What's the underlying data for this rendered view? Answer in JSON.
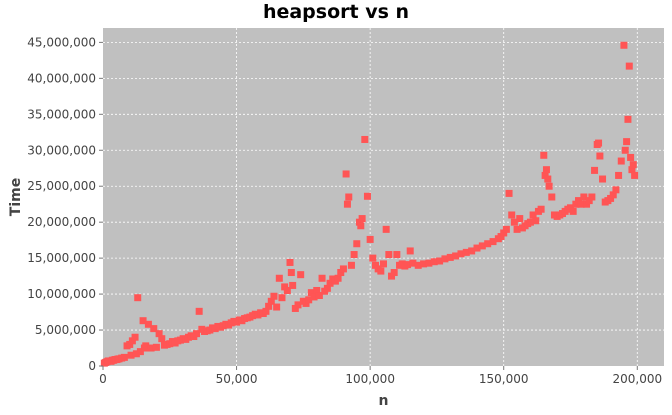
{
  "chart_data": {
    "type": "scatter",
    "title": "heapsort vs n",
    "xlabel": "n",
    "ylabel": "Time",
    "xlim": [
      0,
      210000
    ],
    "ylim": [
      0,
      47000000
    ],
    "x_ticks": [
      "0",
      "50,000",
      "100,000",
      "150,000",
      "200,000"
    ],
    "x_tick_values": [
      0,
      50000,
      100000,
      150000,
      200000
    ],
    "y_ticks": [
      "0",
      "5,000,000",
      "10,000,000",
      "15,000,000",
      "20,000,000",
      "25,000,000",
      "30,000,000",
      "35,000,000",
      "40,000,000",
      "45,000,000"
    ],
    "y_tick_values": [
      0,
      5000000,
      10000000,
      15000000,
      20000000,
      25000000,
      30000000,
      35000000,
      40000000,
      45000000
    ],
    "grid": true,
    "colors": {
      "plot_background": "#c0c0c0",
      "marker": "#ff5555",
      "gridline": "#ffffff"
    },
    "series": [
      {
        "points": [
          [
            500,
            400000
          ],
          [
            1000,
            500000
          ],
          [
            1500,
            600000
          ],
          [
            2000,
            700000
          ],
          [
            2500,
            700000
          ],
          [
            3000,
            650000
          ],
          [
            3500,
            800000
          ],
          [
            4000,
            800000
          ],
          [
            4500,
            900000
          ],
          [
            5000,
            900000
          ],
          [
            5500,
            950000
          ],
          [
            6000,
            1000000
          ],
          [
            7000,
            1100000
          ],
          [
            8000,
            1200000
          ],
          [
            9000,
            2800000
          ],
          [
            10000,
            3000000
          ],
          [
            10500,
            1500000
          ],
          [
            11000,
            3500000
          ],
          [
            12000,
            4000000
          ],
          [
            12500,
            1700000
          ],
          [
            13000,
            9500000
          ],
          [
            14000,
            2000000
          ],
          [
            15000,
            6300000
          ],
          [
            15500,
            2500000
          ],
          [
            16000,
            2800000
          ],
          [
            17000,
            5800000
          ],
          [
            18000,
            2500000
          ],
          [
            19000,
            5200000
          ],
          [
            20000,
            2600000
          ],
          [
            21000,
            4500000
          ],
          [
            22000,
            3800000
          ],
          [
            23000,
            2900000
          ],
          [
            24000,
            3000000
          ],
          [
            25000,
            3100000
          ],
          [
            26000,
            3400000
          ],
          [
            27000,
            3200000
          ],
          [
            28000,
            3500000
          ],
          [
            29000,
            3600000
          ],
          [
            30000,
            3800000
          ],
          [
            31000,
            3700000
          ],
          [
            32000,
            4000000
          ],
          [
            33000,
            4200000
          ],
          [
            34000,
            4100000
          ],
          [
            35000,
            4500000
          ],
          [
            36000,
            7600000
          ],
          [
            37000,
            5100000
          ],
          [
            38000,
            4800000
          ],
          [
            39000,
            4900000
          ],
          [
            40000,
            5000000
          ],
          [
            41000,
            5300000
          ],
          [
            42000,
            5200000
          ],
          [
            43000,
            5500000
          ],
          [
            44000,
            5400000
          ],
          [
            45000,
            5600000
          ],
          [
            46000,
            5800000
          ],
          [
            47000,
            5700000
          ],
          [
            48000,
            6000000
          ],
          [
            49000,
            6200000
          ],
          [
            50000,
            6100000
          ],
          [
            51000,
            6400000
          ],
          [
            52000,
            6300000
          ],
          [
            53000,
            6600000
          ],
          [
            54000,
            6700000
          ],
          [
            55000,
            6800000
          ],
          [
            56000,
            7000000
          ],
          [
            57000,
            7200000
          ],
          [
            58000,
            7100000
          ],
          [
            59000,
            7400000
          ],
          [
            60000,
            7300000
          ],
          [
            61000,
            7600000
          ],
          [
            62000,
            8300000
          ],
          [
            63000,
            9000000
          ],
          [
            64000,
            9700000
          ],
          [
            65000,
            8200000
          ],
          [
            66000,
            12200000
          ],
          [
            67000,
            9500000
          ],
          [
            68000,
            11000000
          ],
          [
            69000,
            10500000
          ],
          [
            70000,
            14400000
          ],
          [
            70500,
            13000000
          ],
          [
            71000,
            11200000
          ],
          [
            72000,
            8000000
          ],
          [
            73000,
            8500000
          ],
          [
            74000,
            12700000
          ],
          [
            75000,
            9000000
          ],
          [
            76000,
            8700000
          ],
          [
            77000,
            9200000
          ],
          [
            78000,
            10200000
          ],
          [
            79000,
            9600000
          ],
          [
            80000,
            10500000
          ],
          [
            81000,
            9800000
          ],
          [
            82000,
            12200000
          ],
          [
            83000,
            10400000
          ],
          [
            84000,
            10800000
          ],
          [
            85000,
            11500000
          ],
          [
            86000,
            12100000
          ],
          [
            87000,
            11800000
          ],
          [
            88000,
            12200000
          ],
          [
            89000,
            13000000
          ],
          [
            90000,
            13500000
          ],
          [
            91000,
            26700000
          ],
          [
            91500,
            22500000
          ],
          [
            92000,
            23500000
          ],
          [
            93000,
            14000000
          ],
          [
            94000,
            15500000
          ],
          [
            95000,
            17000000
          ],
          [
            96000,
            20000000
          ],
          [
            96500,
            19500000
          ],
          [
            97000,
            20500000
          ],
          [
            98000,
            31500000
          ],
          [
            99000,
            23600000
          ],
          [
            100000,
            17600000
          ],
          [
            101000,
            15000000
          ],
          [
            102000,
            14000000
          ],
          [
            103000,
            13500000
          ],
          [
            104000,
            13200000
          ],
          [
            105000,
            14200000
          ],
          [
            106000,
            19000000
          ],
          [
            107000,
            15500000
          ],
          [
            108000,
            12500000
          ],
          [
            109000,
            13000000
          ],
          [
            110000,
            15500000
          ],
          [
            111000,
            14000000
          ],
          [
            112000,
            14200000
          ],
          [
            113000,
            13900000
          ],
          [
            114000,
            14100000
          ],
          [
            115000,
            16000000
          ],
          [
            116000,
            14300000
          ],
          [
            118000,
            14000000
          ],
          [
            120000,
            14200000
          ],
          [
            122000,
            14300000
          ],
          [
            124000,
            14500000
          ],
          [
            126000,
            14600000
          ],
          [
            128000,
            14900000
          ],
          [
            130000,
            15100000
          ],
          [
            132000,
            15300000
          ],
          [
            134000,
            15600000
          ],
          [
            136000,
            15800000
          ],
          [
            138000,
            16000000
          ],
          [
            140000,
            16400000
          ],
          [
            142000,
            16700000
          ],
          [
            144000,
            17000000
          ],
          [
            146000,
            17300000
          ],
          [
            148000,
            17700000
          ],
          [
            149000,
            18000000
          ],
          [
            150000,
            18500000
          ],
          [
            151000,
            19000000
          ],
          [
            152000,
            24000000
          ],
          [
            153000,
            21000000
          ],
          [
            154000,
            20000000
          ],
          [
            155000,
            19000000
          ],
          [
            156000,
            20500000
          ],
          [
            157000,
            19200000
          ],
          [
            158000,
            19500000
          ],
          [
            159000,
            19800000
          ],
          [
            160000,
            20000000
          ],
          [
            161000,
            21000000
          ],
          [
            162000,
            20200000
          ],
          [
            163000,
            21500000
          ],
          [
            164000,
            21800000
          ],
          [
            165000,
            29300000
          ],
          [
            165500,
            26500000
          ],
          [
            166000,
            27300000
          ],
          [
            166500,
            26000000
          ],
          [
            167000,
            25000000
          ],
          [
            168000,
            23500000
          ],
          [
            169000,
            21000000
          ],
          [
            170000,
            20800000
          ],
          [
            171000,
            21000000
          ],
          [
            172000,
            21200000
          ],
          [
            173000,
            21500000
          ],
          [
            174000,
            21800000
          ],
          [
            175000,
            22000000
          ],
          [
            176000,
            21500000
          ],
          [
            177000,
            22500000
          ],
          [
            178000,
            23000000
          ],
          [
            179000,
            22500000
          ],
          [
            180000,
            23500000
          ],
          [
            181000,
            22500000
          ],
          [
            182000,
            23000000
          ],
          [
            183000,
            23500000
          ],
          [
            184000,
            27200000
          ],
          [
            185000,
            30800000
          ],
          [
            185500,
            31000000
          ],
          [
            186000,
            29200000
          ],
          [
            187000,
            26000000
          ],
          [
            188000,
            22800000
          ],
          [
            189000,
            23000000
          ],
          [
            190000,
            23300000
          ],
          [
            191000,
            23800000
          ],
          [
            192000,
            24500000
          ],
          [
            193000,
            26500000
          ],
          [
            194000,
            28500000
          ],
          [
            195000,
            44600000
          ],
          [
            195500,
            30000000
          ],
          [
            196000,
            31200000
          ],
          [
            196500,
            34300000
          ],
          [
            197000,
            41700000
          ],
          [
            197500,
            29000000
          ],
          [
            198000,
            27300000
          ],
          [
            198500,
            28000000
          ],
          [
            199000,
            26500000
          ]
        ]
      }
    ]
  }
}
